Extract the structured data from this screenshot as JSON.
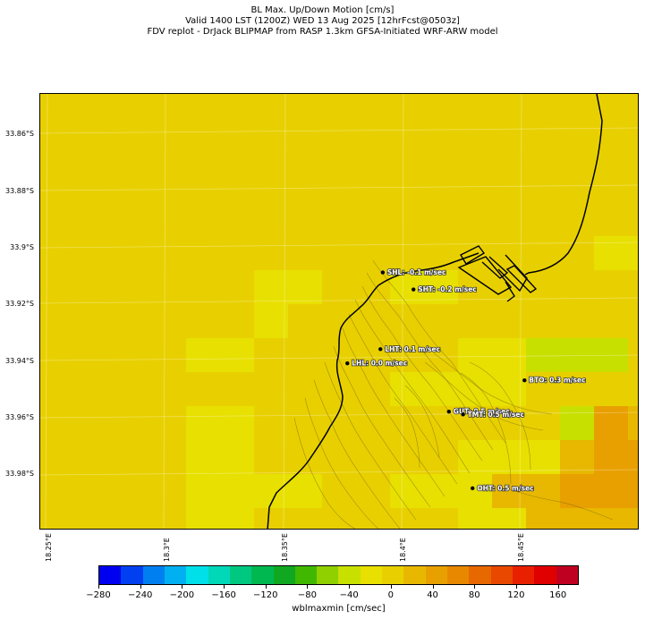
{
  "header": {
    "line1": "BL Max. Up/Down Motion [cm/s]",
    "line2": "Valid 1400 LST (1200Z) WED 13 Aug 2025 [12hrFcst@0503z]",
    "line3": "FDV replot - DrJack BLIPMAP from RASP 1.3km GFSA-Initiated WRF-ARW model"
  },
  "axes": {
    "lat_labels": [
      "33.86°S",
      "33.88°S",
      "33.9°S",
      "33.92°S",
      "33.94°S",
      "33.96°S",
      "33.98°S"
    ],
    "lon_labels": [
      "18.25°E",
      "18.3°E",
      "18.35°E",
      "18.4°E",
      "18.45°E"
    ]
  },
  "sites": [
    {
      "code": "SHL",
      "label": "SHL: -0.1 m/sec",
      "lon": 18.392,
      "lat": -33.909
    },
    {
      "code": "SHT",
      "label": "SHT: -0.2 m/sec",
      "lon": 18.405,
      "lat": -33.915
    },
    {
      "code": "LHT",
      "label": "LHT: 0.1 m/sec",
      "lon": 18.391,
      "lat": -33.936
    },
    {
      "code": "LHL",
      "label": "LHL: 0.0 m/sec",
      "lon": 18.377,
      "lat": -33.941
    },
    {
      "code": "BTO",
      "label": "BTO: 0.3 m/sec",
      "lon": 18.452,
      "lat": -33.947
    },
    {
      "code": "GUT",
      "label": "GUT: 0.5 m/sec",
      "lon": 18.42,
      "lat": -33.958
    },
    {
      "code": "TMT",
      "label": "TMT: 0.5 m/sec",
      "lon": 18.426,
      "lat": -33.959
    },
    {
      "code": "OHT",
      "label": "OHT: 0.5 m/sec",
      "lon": 18.43,
      "lat": -33.985
    }
  ],
  "colorbar": {
    "label": "wblmaxmin [cm/sec]",
    "ticks": [
      "−280",
      "−240",
      "−200",
      "−160",
      "−120",
      "−80",
      "−40",
      "0",
      "40",
      "80",
      "120",
      "160"
    ],
    "range": [
      -280,
      180
    ],
    "colors": [
      "#0000f0",
      "#0040f0",
      "#0080f0",
      "#00b0f0",
      "#00e0e8",
      "#00d8b8",
      "#00c880",
      "#00b850",
      "#10a820",
      "#40b800",
      "#90d000",
      "#c8e000",
      "#e8e000",
      "#e8d000",
      "#e8b800",
      "#e8a000",
      "#e88800",
      "#e86800",
      "#e84800",
      "#e82000",
      "#e00000",
      "#c00020"
    ]
  },
  "map_data": {
    "background_color": "#e8d000",
    "colors": {
      "y1": "#e8e000",
      "y2": "#e8d000",
      "g1": "#c8e000",
      "g2": "#90d000",
      "o1": "#e8b800",
      "o2": "#e8a000",
      "o3": "#e88800",
      "r1": "#e86800",
      "r2": "#e84800",
      "r3": "#e82000"
    },
    "grid_cols": 35,
    "grid_rows": 13,
    "cells": [
      [
        25,
        1,
        "y1"
      ],
      [
        26,
        1,
        "y1"
      ],
      [
        30,
        1,
        "y1"
      ],
      [
        23,
        2,
        "y1"
      ],
      [
        24,
        2,
        "y1"
      ],
      [
        27,
        2,
        "y1"
      ],
      [
        28,
        2,
        "y1"
      ],
      [
        31,
        2,
        "y1"
      ],
      [
        32,
        2,
        "y1"
      ],
      [
        33,
        2,
        "y1"
      ],
      [
        19,
        3,
        "y1"
      ],
      [
        20,
        3,
        "y1"
      ],
      [
        21,
        3,
        "y1"
      ],
      [
        32,
        3,
        "y1"
      ],
      [
        33,
        3,
        "y1"
      ],
      [
        17,
        4,
        "y1"
      ],
      [
        18,
        4,
        "y1"
      ],
      [
        19,
        4,
        "y1"
      ],
      [
        20,
        4,
        "g1"
      ],
      [
        21,
        4,
        "g1"
      ],
      [
        22,
        4,
        "g1"
      ],
      [
        23,
        4,
        "y1"
      ],
      [
        7,
        5,
        "y1"
      ],
      [
        8,
        5,
        "y1"
      ],
      [
        11,
        5,
        "y1"
      ],
      [
        12,
        5,
        "y1"
      ],
      [
        22,
        5,
        "g1"
      ],
      [
        23,
        5,
        "g1"
      ],
      [
        24,
        5,
        "g1"
      ],
      [
        25,
        5,
        "y1"
      ],
      [
        7,
        6,
        "y1"
      ],
      [
        23,
        6,
        "g1"
      ],
      [
        24,
        6,
        "g1"
      ],
      [
        25,
        6,
        "y1"
      ],
      [
        27,
        6,
        "o1"
      ],
      [
        28,
        6,
        "o1"
      ],
      [
        29,
        6,
        "o1"
      ],
      [
        30,
        6,
        "y1"
      ],
      [
        5,
        7,
        "y1"
      ],
      [
        6,
        7,
        "y1"
      ],
      [
        13,
        7,
        "y1"
      ],
      [
        14,
        7,
        "y1"
      ],
      [
        15,
        7,
        "g1"
      ],
      [
        16,
        7,
        "g1"
      ],
      [
        17,
        7,
        "g1"
      ],
      [
        20,
        7,
        "g1"
      ],
      [
        21,
        7,
        "g1"
      ],
      [
        22,
        7,
        "o1"
      ],
      [
        23,
        7,
        "o1"
      ],
      [
        24,
        7,
        "o2"
      ],
      [
        25,
        7,
        "o2"
      ],
      [
        26,
        7,
        "o2"
      ],
      [
        27,
        7,
        "r1"
      ],
      [
        28,
        7,
        "r1"
      ],
      [
        29,
        7,
        "o2"
      ],
      [
        11,
        8,
        "y1"
      ],
      [
        12,
        8,
        "y1"
      ],
      [
        13,
        8,
        "y1"
      ],
      [
        14,
        8,
        "y1"
      ],
      [
        20,
        8,
        "g2"
      ],
      [
        21,
        8,
        "o1"
      ],
      [
        22,
        8,
        "o2"
      ],
      [
        23,
        8,
        "o2"
      ],
      [
        24,
        8,
        "o3"
      ],
      [
        25,
        8,
        "r1"
      ],
      [
        26,
        8,
        "r1"
      ],
      [
        27,
        8,
        "r2"
      ],
      [
        28,
        8,
        "r1"
      ],
      [
        29,
        8,
        "o3"
      ],
      [
        30,
        8,
        "g1"
      ],
      [
        31,
        8,
        "g1"
      ],
      [
        32,
        8,
        "g1"
      ],
      [
        5,
        9,
        "y1"
      ],
      [
        6,
        9,
        "y1"
      ],
      [
        16,
        9,
        "g1"
      ],
      [
        17,
        9,
        "o2"
      ],
      [
        18,
        9,
        "o1"
      ],
      [
        19,
        9,
        "o3"
      ],
      [
        20,
        9,
        "o3"
      ],
      [
        21,
        9,
        "o2"
      ],
      [
        22,
        9,
        "o3"
      ],
      [
        23,
        9,
        "o3"
      ],
      [
        24,
        9,
        "r1"
      ],
      [
        25,
        9,
        "r1"
      ],
      [
        26,
        9,
        "o3"
      ],
      [
        27,
        9,
        "o3"
      ],
      [
        28,
        9,
        "o2"
      ],
      [
        29,
        9,
        "g2"
      ],
      [
        30,
        9,
        "g2"
      ],
      [
        31,
        9,
        "g1"
      ],
      [
        32,
        9,
        "g1"
      ],
      [
        5,
        10,
        "y1"
      ],
      [
        6,
        10,
        "y1"
      ],
      [
        13,
        10,
        "y1"
      ],
      [
        14,
        10,
        "y1"
      ],
      [
        15,
        10,
        "y1"
      ],
      [
        16,
        10,
        "o1"
      ],
      [
        17,
        10,
        "o2"
      ],
      [
        18,
        10,
        "o2"
      ],
      [
        19,
        10,
        "o2"
      ],
      [
        20,
        10,
        "o2"
      ],
      [
        21,
        10,
        "o3"
      ],
      [
        22,
        10,
        "o3"
      ],
      [
        23,
        10,
        "o3"
      ],
      [
        24,
        10,
        "r3"
      ],
      [
        25,
        10,
        "r2"
      ],
      [
        26,
        10,
        "o3"
      ],
      [
        27,
        10,
        "o2"
      ],
      [
        28,
        10,
        "o2"
      ],
      [
        29,
        10,
        "o1"
      ],
      [
        5,
        11,
        "y1"
      ],
      [
        6,
        11,
        "y1"
      ],
      [
        7,
        11,
        "y1"
      ],
      [
        8,
        11,
        "y1"
      ],
      [
        11,
        11,
        "y1"
      ],
      [
        12,
        11,
        "y1"
      ],
      [
        13,
        11,
        "y1"
      ],
      [
        14,
        11,
        "o1"
      ],
      [
        15,
        11,
        "o1"
      ],
      [
        16,
        11,
        "o2"
      ],
      [
        17,
        11,
        "o2"
      ],
      [
        18,
        11,
        "o2"
      ],
      [
        19,
        11,
        "o2"
      ],
      [
        20,
        11,
        "o2"
      ],
      [
        21,
        11,
        "o2"
      ],
      [
        22,
        11,
        "o2"
      ],
      [
        23,
        11,
        "o2"
      ],
      [
        24,
        11,
        "o2"
      ],
      [
        25,
        11,
        "o2"
      ],
      [
        26,
        11,
        "o1"
      ],
      [
        27,
        11,
        "o1"
      ],
      [
        28,
        11,
        "o1"
      ],
      [
        5,
        12,
        "y1"
      ],
      [
        6,
        12,
        "y1"
      ],
      [
        13,
        12,
        "y1"
      ],
      [
        14,
        12,
        "y1"
      ],
      [
        15,
        12,
        "o1"
      ],
      [
        16,
        12,
        "o1"
      ],
      [
        17,
        12,
        "o1"
      ],
      [
        18,
        12,
        "o1"
      ],
      [
        19,
        12,
        "o1"
      ],
      [
        20,
        12,
        "o1"
      ],
      [
        21,
        12,
        "o1"
      ],
      [
        22,
        12,
        "o2"
      ],
      [
        23,
        12,
        "o2"
      ],
      [
        24,
        12,
        "o2"
      ],
      [
        25,
        12,
        "o1"
      ],
      [
        26,
        12,
        "o1"
      ],
      [
        27,
        12,
        "o1"
      ]
    ]
  }
}
